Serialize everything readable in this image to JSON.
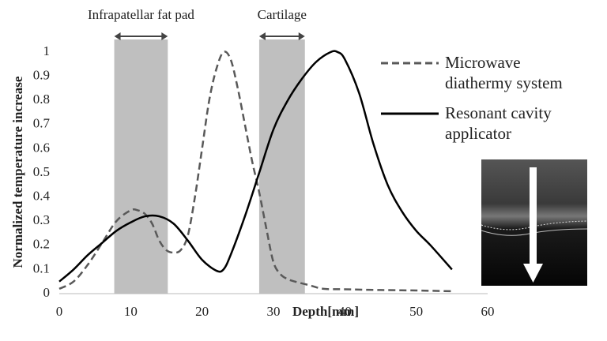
{
  "chart_data": {
    "type": "line",
    "x_label": "Depth[mm]",
    "y_label": "Normalized temperature increase",
    "xlim": [
      0,
      60
    ],
    "xticks": [
      0,
      10,
      20,
      30,
      40,
      50,
      60
    ],
    "ylim": [
      0,
      1
    ],
    "yticks": [
      0,
      0.1,
      0.2,
      0.3,
      0.4,
      0.5,
      0.6,
      0.7,
      0.8,
      0.9,
      1
    ],
    "grid": false,
    "regions": [
      {
        "label": "Infrapatellar fat pad",
        "x": [
          7.7,
          15.2
        ],
        "color": "#bfbfbf"
      },
      {
        "label": "Cartilage",
        "x": [
          28,
          34.4
        ],
        "color": "#bfbfbf"
      }
    ],
    "series": [
      {
        "name": "Microwave diathermy system",
        "color": "#595959",
        "dash": true,
        "x": [
          0,
          2,
          4,
          6,
          8,
          10,
          11,
          12,
          13,
          14,
          15,
          16,
          17,
          18,
          19,
          20,
          21,
          22,
          23,
          24,
          25,
          26,
          27,
          28,
          29,
          30,
          31,
          32,
          33,
          35,
          37,
          40,
          45,
          50,
          55
        ],
        "values": [
          0.02,
          0.05,
          0.12,
          0.21,
          0.3,
          0.345,
          0.345,
          0.33,
          0.29,
          0.22,
          0.18,
          0.17,
          0.18,
          0.24,
          0.4,
          0.6,
          0.8,
          0.93,
          1.0,
          0.97,
          0.85,
          0.7,
          0.55,
          0.42,
          0.27,
          0.13,
          0.08,
          0.06,
          0.05,
          0.035,
          0.02,
          0.018,
          0.015,
          0.013,
          0.01
        ]
      },
      {
        "name": "Resonant cavity applicator",
        "color": "#000000",
        "dash": false,
        "x": [
          0,
          2,
          4,
          6,
          8,
          10,
          12,
          14,
          16,
          18,
          20,
          22,
          23,
          24,
          26,
          28,
          30,
          32,
          34,
          36,
          38,
          39,
          40,
          42,
          44,
          46,
          48,
          50,
          52,
          55
        ],
        "values": [
          0.05,
          0.1,
          0.16,
          0.21,
          0.26,
          0.295,
          0.32,
          0.32,
          0.29,
          0.22,
          0.14,
          0.095,
          0.1,
          0.16,
          0.32,
          0.5,
          0.68,
          0.8,
          0.89,
          0.96,
          1.0,
          1.0,
          0.97,
          0.83,
          0.62,
          0.45,
          0.34,
          0.26,
          0.2,
          0.1
        ]
      }
    ]
  }
}
